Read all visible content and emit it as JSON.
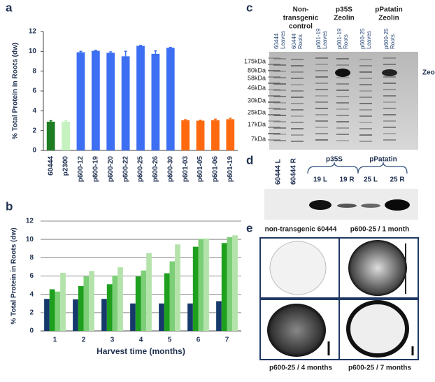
{
  "chart_data": [
    {
      "type": "bar",
      "panel_label": "a",
      "y_label": "% Total Protein in Roots (dw)",
      "categories": [
        "60444",
        "p2300",
        "p600-12",
        "p600-19",
        "p600-20",
        "p600-22",
        "p600-25",
        "p600-26",
        "p600-30",
        "p601-03",
        "p601-05",
        "p601-06",
        "p601-19"
      ],
      "values": [
        2.9,
        2.9,
        9.9,
        10.05,
        9.85,
        9.5,
        10.55,
        9.75,
        10.35,
        3.05,
        3.0,
        3.05,
        3.15
      ],
      "errors": [
        0.1,
        0.1,
        0.1,
        0.05,
        0.1,
        0.5,
        0.05,
        0.3,
        0.05,
        0.05,
        0.05,
        0.1,
        0.1
      ],
      "colors": [
        "#1e7d22",
        "#c6f2c0",
        "#3d6ff2",
        "#3d6ff2",
        "#3d6ff2",
        "#3d6ff2",
        "#3d6ff2",
        "#3d6ff2",
        "#3d6ff2",
        "#ff6a10",
        "#ff6a10",
        "#ff6a10",
        "#ff6a10"
      ],
      "ylim": [
        0,
        12
      ],
      "yticks": [
        0,
        2,
        4,
        6,
        8,
        10,
        12
      ],
      "grid": false
    },
    {
      "type": "bar",
      "panel_label": "b",
      "y_label": "% Total Protein in Roots (dw)",
      "x_label": "Harvest time (months)",
      "categories": [
        "1",
        "2",
        "3",
        "4",
        "5",
        "6",
        "7"
      ],
      "series": [
        {
          "color": "#16396b",
          "values": [
            3.5,
            3.45,
            3.5,
            3.0,
            3.0,
            3.0,
            3.25
          ]
        },
        {
          "color": "#1ea01e",
          "values": [
            4.55,
            4.9,
            5.1,
            5.95,
            6.3,
            9.2,
            9.6
          ]
        },
        {
          "color": "#7ccf76",
          "values": [
            4.3,
            5.95,
            6.05,
            6.6,
            7.6,
            10.05,
            10.25
          ]
        },
        {
          "color": "#b3e3aa",
          "values": [
            6.35,
            6.55,
            6.95,
            8.5,
            9.45,
            10.1,
            10.45
          ]
        }
      ],
      "ylim": [
        0,
        12
      ],
      "yticks": [
        0,
        2,
        4,
        6,
        8,
        10,
        12
      ],
      "grid": true
    }
  ],
  "panel_c": {
    "label": "c",
    "groups": [
      [
        "Non-",
        "transgenic",
        "control"
      ],
      [
        "p35S",
        "Zeolin"
      ],
      [
        "pPatatin",
        "Zeolin"
      ]
    ],
    "lanes": [
      [
        "60444",
        "Leaves"
      ],
      [
        "60444",
        "Roots"
      ],
      [
        "p601-19",
        "Leaves"
      ],
      [
        "p601-19",
        "Roots"
      ],
      [
        "p600-25",
        "Leaves"
      ],
      [
        "p600-25",
        "Roots"
      ]
    ],
    "markers": [
      "175kDa",
      "80kDa",
      "58kDa",
      "46kDa",
      "30kDa",
      "25kDa",
      "17kDa",
      "7kDa"
    ],
    "band_label": "Zeolin"
  },
  "panel_d": {
    "label": "d",
    "lanes": [
      "60444 L",
      "60444 R"
    ],
    "groups": [
      "p35S",
      "pPatatin"
    ],
    "sublanes": [
      "19 L",
      "19 R",
      "25 L",
      "25 R"
    ]
  },
  "panel_e": {
    "label": "e",
    "captions": [
      "non-transgenic 60444",
      "p600-25 / 1 month",
      "p600-25 / 4 months",
      "p600-25 / 7 months"
    ]
  }
}
